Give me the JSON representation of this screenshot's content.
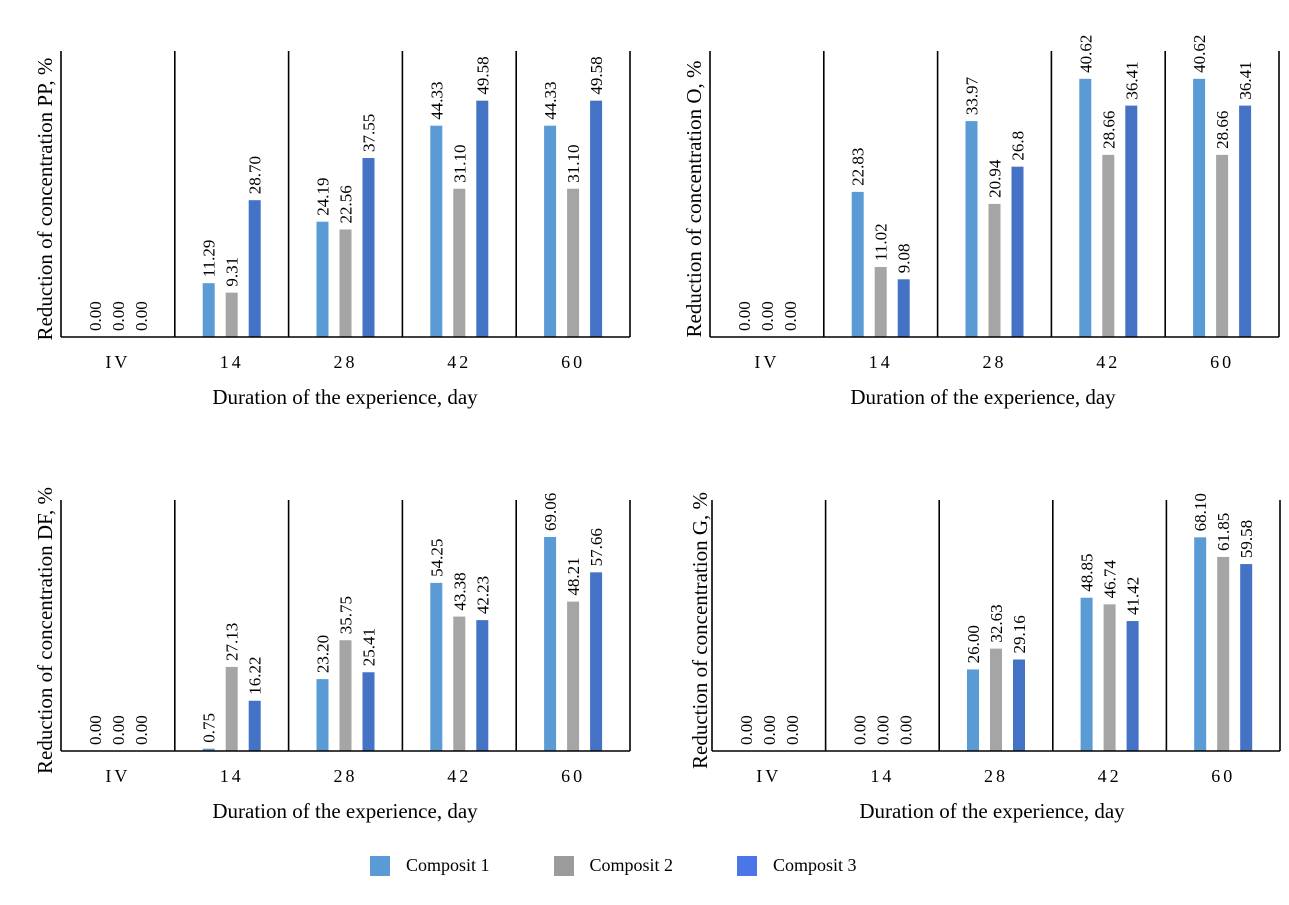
{
  "chart_data": [
    {
      "type": "bar",
      "title": "",
      "xlabel": "Duration of the experience, day",
      "ylabel": "Reduction of concentration PP, %",
      "categories": [
        "IV",
        "14",
        "28",
        "42",
        "60"
      ],
      "ylim": [
        0,
        60
      ],
      "series": [
        {
          "name": "Composit 1",
          "values": [
            0,
            11.29,
            24.19,
            44.33,
            44.33
          ],
          "labels": [
            "0.00",
            "11.29",
            "24.19",
            "44.33",
            "44.33"
          ]
        },
        {
          "name": "Composit 2",
          "values": [
            0,
            9.31,
            22.56,
            31.1,
            31.1
          ],
          "labels": [
            "0.00",
            "9.31",
            "22.56",
            "31.10",
            "31.10"
          ]
        },
        {
          "name": "Composit 3",
          "values": [
            0,
            28.7,
            37.55,
            49.58,
            49.58
          ],
          "labels": [
            "0.00",
            "28.70",
            "37.55",
            "49.58",
            "49.58"
          ]
        }
      ]
    },
    {
      "type": "bar",
      "title": "",
      "xlabel": "Duration of the experience, day",
      "ylabel": "Reduction of concentration O, %",
      "categories": [
        "IV",
        "14",
        "28",
        "42",
        "60"
      ],
      "ylim": [
        0,
        45
      ],
      "series": [
        {
          "name": "Composit 1",
          "values": [
            0,
            22.83,
            33.97,
            40.62,
            40.62
          ],
          "labels": [
            "0.00",
            "22.83",
            "33.97",
            "40.62",
            "40.62"
          ]
        },
        {
          "name": "Composit 2",
          "values": [
            0,
            11.02,
            20.94,
            28.66,
            28.66
          ],
          "labels": [
            "0.00",
            "11.02",
            "20.94",
            "28.66",
            "28.66"
          ]
        },
        {
          "name": "Composit 3",
          "values": [
            0,
            9.08,
            26.8,
            36.41,
            36.41
          ],
          "labels": [
            "0.00",
            "9.08",
            "26.8",
            "36.41",
            "36.41"
          ]
        }
      ]
    },
    {
      "type": "bar",
      "title": "",
      "xlabel": "Duration of the experience, day",
      "ylabel": "Reduction of concentration DF, %",
      "categories": [
        "IV",
        "14",
        "28",
        "42",
        "60"
      ],
      "ylim": [
        0,
        81
      ],
      "series": [
        {
          "name": "Composit 1",
          "values": [
            0,
            0.75,
            23.2,
            54.25,
            69.06
          ],
          "labels": [
            "0.00",
            "0.75",
            "23.20",
            "54.25",
            "69.06"
          ]
        },
        {
          "name": "Composit 2",
          "values": [
            0,
            27.13,
            35.75,
            43.38,
            48.21
          ],
          "labels": [
            "0.00",
            "27.13",
            "35.75",
            "43.38",
            "48.21"
          ]
        },
        {
          "name": "Composit 3",
          "values": [
            0,
            16.22,
            25.41,
            42.23,
            57.66
          ],
          "labels": [
            "0.00",
            "16.22",
            "25.41",
            "42.23",
            "57.66"
          ]
        }
      ]
    },
    {
      "type": "bar",
      "title": "",
      "xlabel": "Duration of the experience, day",
      "ylabel": "Reduction of concentration G, %",
      "categories": [
        "IV",
        "14",
        "28",
        "42",
        "60"
      ],
      "ylim": [
        0,
        80
      ],
      "series": [
        {
          "name": "Composit 1",
          "values": [
            0,
            0,
            26.0,
            48.85,
            68.1
          ],
          "labels": [
            "0.00",
            "0.00",
            "26.00",
            "48.85",
            "68.10"
          ]
        },
        {
          "name": "Composit 2",
          "values": [
            0,
            0,
            32.63,
            46.74,
            61.85
          ],
          "labels": [
            "0.00",
            "0.00",
            "32.63",
            "46.74",
            "61.85"
          ]
        },
        {
          "name": "Composit 3",
          "values": [
            0,
            0,
            29.16,
            41.42,
            59.58
          ],
          "labels": [
            "0.00",
            "0.00",
            "29.16",
            "41.42",
            "59.58"
          ]
        }
      ]
    }
  ],
  "legend": {
    "position": "bottom",
    "items": [
      {
        "label": "Composit 1",
        "color": "#5b9bd5"
      },
      {
        "label": "Composit 2",
        "color": "#a5a5a5"
      },
      {
        "label": "Composit 3",
        "color": "#4472c4"
      }
    ]
  },
  "legend_swatch_colors": [
    "#5b9bd5",
    "#9b9b9b",
    "#4a76e8"
  ]
}
